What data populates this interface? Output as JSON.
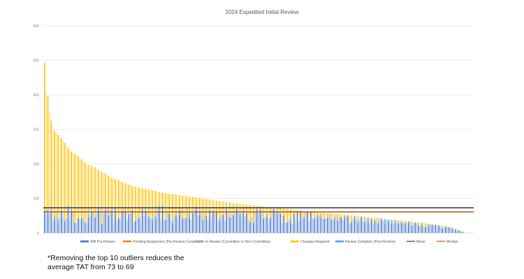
{
  "chart_data": {
    "type": "bar",
    "stacked": true,
    "title": "2024 Expedited Initial Review",
    "xlabel": "",
    "ylabel": "",
    "ylim": [
      0,
      600
    ],
    "yticks": [
      0,
      100,
      200,
      300,
      400,
      500,
      600
    ],
    "grid": true,
    "legend_position": "bottom",
    "series": [
      {
        "name": "IRB Pre-Review",
        "color": "#4472C4"
      },
      {
        "name": "Pending Assignment (Pre-Review Complete)",
        "color": "#ED7D31"
      },
      {
        "name": "In Review (Committee or Non-Committee)",
        "color": "#A5A5A5"
      },
      {
        "name": "Changes Required",
        "color": "#FFC000"
      },
      {
        "name": "Review Complete (Post-Review)",
        "color": "#5B9BD5"
      }
    ],
    "reference_lines": [
      {
        "name": "Mean",
        "value": 73,
        "color": "#203864"
      },
      {
        "name": "Median",
        "value": 61,
        "color": "#C55A11"
      }
    ],
    "bar_count": 250,
    "totals_profile": [
      [
        0,
        493
      ],
      [
        1,
        410
      ],
      [
        2,
        395
      ],
      [
        3,
        350
      ],
      [
        5,
        300
      ],
      [
        8,
        285
      ],
      [
        10,
        275
      ],
      [
        15,
        240
      ],
      [
        20,
        222
      ],
      [
        25,
        200
      ],
      [
        30,
        190
      ],
      [
        35,
        175
      ],
      [
        40,
        160
      ],
      [
        45,
        150
      ],
      [
        50,
        140
      ],
      [
        55,
        133
      ],
      [
        60,
        128
      ],
      [
        65,
        122
      ],
      [
        70,
        117
      ],
      [
        75,
        113
      ],
      [
        80,
        110
      ],
      [
        90,
        103
      ],
      [
        100,
        95
      ],
      [
        110,
        88
      ],
      [
        120,
        82
      ],
      [
        130,
        77
      ],
      [
        140,
        72
      ],
      [
        150,
        66
      ],
      [
        160,
        60
      ],
      [
        170,
        56
      ],
      [
        180,
        52
      ],
      [
        190,
        47
      ],
      [
        200,
        42
      ],
      [
        210,
        37
      ],
      [
        220,
        32
      ],
      [
        230,
        26
      ],
      [
        240,
        18
      ],
      [
        245,
        10
      ],
      [
        249,
        3
      ]
    ]
  },
  "footnote": {
    "line1": "*Removing the top 10 outliers reduces the",
    "line2": "average TAT from 73 to 69"
  }
}
